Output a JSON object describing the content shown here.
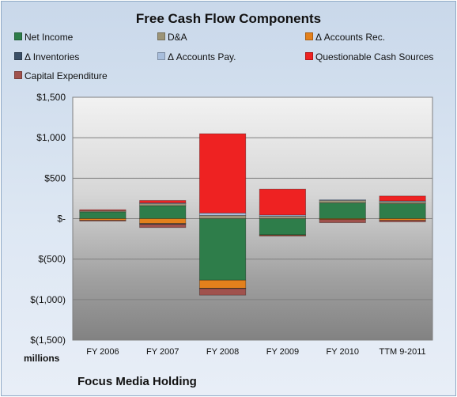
{
  "chart_data": {
    "type": "bar",
    "stacked": true,
    "title": "Free Cash Flow Components",
    "categories": [
      "FY 2006",
      "FY 2007",
      "FY 2008",
      "FY 2009",
      "FY 2010",
      "TTM 9-2011"
    ],
    "ylim": [
      -1500,
      1500
    ],
    "yticks": [
      1500,
      1000,
      500,
      0,
      -500,
      -1000,
      -1500
    ],
    "ytick_labels": [
      "$1,500",
      "$1,000",
      "$500",
      "$-",
      "$(500)",
      "$(1,000)",
      "$(1,500)"
    ],
    "units_label": "millions",
    "grid": true,
    "legend_position": "top",
    "series": [
      {
        "name": "Net Income",
        "color": "#2e7d4a",
        "values": [
          85,
          160,
          -760,
          -200,
          195,
          185
        ]
      },
      {
        "name": "D&A",
        "color": "#9c9477",
        "values": [
          15,
          25,
          40,
          30,
          30,
          25
        ]
      },
      {
        "name": "Δ Accounts Rec.",
        "color": "#e3801c",
        "values": [
          -20,
          -60,
          -100,
          -5,
          -10,
          -20
        ]
      },
      {
        "name": "Δ Inventories",
        "color": "#3b4f66",
        "values": [
          0,
          -10,
          -5,
          0,
          0,
          0
        ]
      },
      {
        "name": "Δ Accounts Pay.",
        "color": "#a8bedc",
        "values": [
          0,
          10,
          30,
          15,
          10,
          10
        ]
      },
      {
        "name": "Questionable Cash Sources",
        "color": "#ee2222",
        "values": [
          10,
          30,
          980,
          320,
          0,
          60
        ]
      },
      {
        "name": "Capital Expenditure",
        "color": "#a0524d",
        "values": [
          -10,
          -40,
          -80,
          -10,
          -40,
          -20
        ]
      }
    ]
  },
  "footer": {
    "company": "Focus Media Holding"
  }
}
